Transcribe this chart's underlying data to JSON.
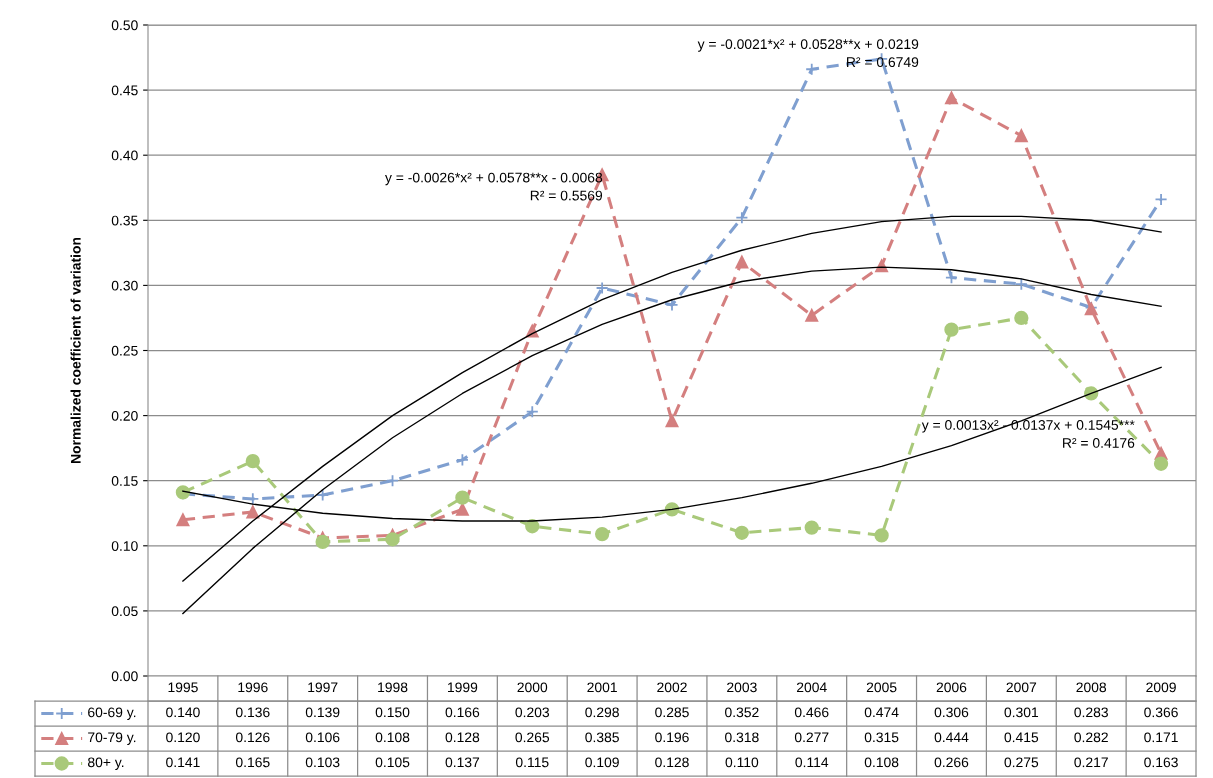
{
  "chart_data": {
    "type": "line",
    "ylabel": "Normalized coefficient of variation",
    "categories": [
      "1995",
      "1996",
      "1997",
      "1998",
      "1999",
      "2000",
      "2001",
      "2002",
      "2003",
      "2004",
      "2005",
      "2006",
      "2007",
      "2008",
      "2009"
    ],
    "series": [
      {
        "name": "60-69 y.",
        "color": "#7f9fd0",
        "marker": "cross",
        "line_style": "dashed",
        "values": [
          0.14,
          0.136,
          0.139,
          0.15,
          0.166,
          0.203,
          0.298,
          0.285,
          0.352,
          0.466,
          0.474,
          0.306,
          0.301,
          0.283,
          0.366
        ],
        "value_labels": [
          "0.140",
          "0.136",
          "0.139",
          "0.150",
          "0.166",
          "0.203",
          "0.298",
          "0.285",
          "0.352",
          "0.466",
          "0.474",
          "0.306",
          "0.301",
          "0.283",
          "0.366"
        ]
      },
      {
        "name": "70-79 y.",
        "color": "#d47f7f",
        "marker": "triangle",
        "line_style": "dashed",
        "values": [
          0.12,
          0.126,
          0.106,
          0.108,
          0.128,
          0.265,
          0.385,
          0.196,
          0.318,
          0.277,
          0.315,
          0.444,
          0.415,
          0.282,
          0.171
        ],
        "value_labels": [
          "0.120",
          "0.126",
          "0.106",
          "0.108",
          "0.128",
          "0.265",
          "0.385",
          "0.196",
          "0.318",
          "0.277",
          "0.315",
          "0.444",
          "0.415",
          "0.282",
          "0.171"
        ]
      },
      {
        "name": "80+ y.",
        "color": "#a9c97a",
        "marker": "circle",
        "line_style": "dashed",
        "values": [
          0.141,
          0.165,
          0.103,
          0.105,
          0.137,
          0.115,
          0.109,
          0.128,
          0.11,
          0.114,
          0.108,
          0.266,
          0.275,
          0.217,
          0.163
        ],
        "value_labels": [
          "0.141",
          "0.165",
          "0.103",
          "0.105",
          "0.137",
          "0.115",
          "0.109",
          "0.128",
          "0.110",
          "0.114",
          "0.108",
          "0.266",
          "0.275",
          "0.217",
          "0.163"
        ]
      },
      {
        "type": "line",
        "color": "#000000",
        "marker": "none",
        "line_style": "solid",
        "values": [
          0.073,
          0.119,
          0.161,
          0.2,
          0.233,
          0.263,
          0.289,
          0.31,
          0.327,
          0.34,
          0.349,
          0.353,
          0.353,
          0.35,
          0.341
        ]
      },
      {
        "type": "line",
        "color": "#000000",
        "marker": "none",
        "line_style": "solid",
        "values": [
          0.048,
          0.098,
          0.143,
          0.183,
          0.217,
          0.246,
          0.27,
          0.289,
          0.303,
          0.311,
          0.314,
          0.312,
          0.305,
          0.293,
          0.284
        ]
      },
      {
        "type": "line",
        "color": "#000000",
        "marker": "none",
        "line_style": "solid",
        "values": [
          0.142,
          0.132,
          0.125,
          0.121,
          0.119,
          0.119,
          0.122,
          0.128,
          0.137,
          0.148,
          0.161,
          0.177,
          0.196,
          0.217,
          0.237
        ]
      }
    ],
    "annotations": [
      "y = -0.0021*x² + 0.0528**x + 0.0219\nR² = 0.6749",
      "y = -0.0026*x² + 0.0578**x - 0.0068\nR² = 0.5569",
      "y = 0.0013x² - 0.0137x + 0.1545***\nR² = 0.4176"
    ],
    "ylim": [
      0,
      0.5
    ],
    "yticks": [
      {
        "value": 0,
        "label": "0.00"
      },
      {
        "value": 0.05,
        "label": "0.05"
      },
      {
        "value": 0.1,
        "label": "0.10"
      },
      {
        "value": 0.15,
        "label": "0.15"
      },
      {
        "value": 0.2,
        "label": "0.20"
      },
      {
        "value": 0.25,
        "label": "0.25"
      },
      {
        "value": 0.3,
        "label": "0.30"
      },
      {
        "value": 0.35,
        "label": "0.35"
      },
      {
        "value": 0.4,
        "label": "0.40"
      },
      {
        "value": 0.45,
        "label": "0.45"
      },
      {
        "value": 0.5,
        "label": "0.50"
      }
    ],
    "grid": "y",
    "legend": "bottom"
  }
}
